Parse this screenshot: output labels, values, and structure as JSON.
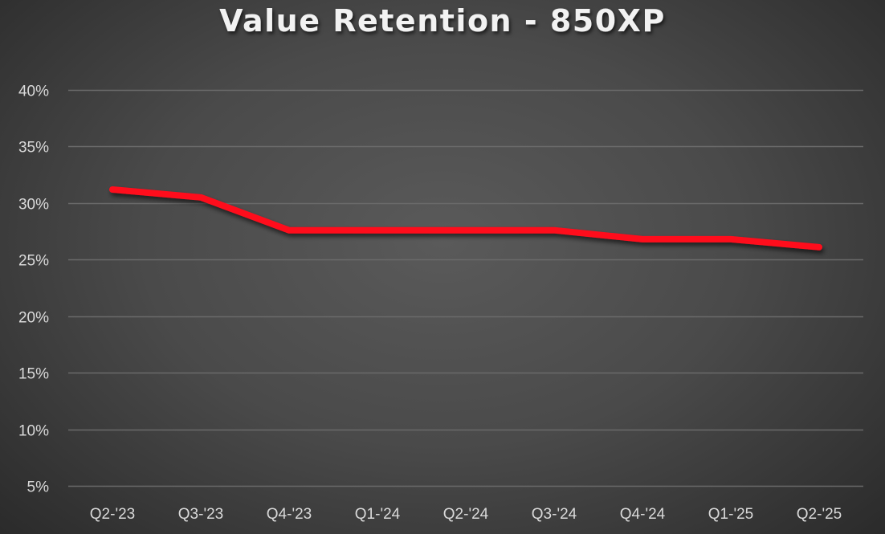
{
  "chart_data": {
    "type": "line",
    "title": "Value Retention - 850XP",
    "xlabel": "",
    "ylabel": "",
    "categories": [
      "Q2-'23",
      "Q3-'23",
      "Q4-'23",
      "Q1-'24",
      "Q2-'24",
      "Q3-'24",
      "Q4-'24",
      "Q1-'25",
      "Q2-'25"
    ],
    "series": [
      {
        "name": "850XP",
        "color": "#ff0c1c",
        "values": [
          31.2,
          30.5,
          27.6,
          27.6,
          27.6,
          27.6,
          26.8,
          26.8,
          26.1
        ]
      }
    ],
    "ylim": [
      5,
      40
    ],
    "yticks": [
      5,
      10,
      15,
      20,
      25,
      30,
      35,
      40
    ],
    "ytick_labels": [
      "5%",
      "10%",
      "15%",
      "20%",
      "25%",
      "30%",
      "35%",
      "40%"
    ],
    "grid": true,
    "legend": null
  },
  "colors": {
    "line": "#ff0c1c",
    "grid": "#6a6a6a",
    "text": "#d9d9d9",
    "title": "#f2f2f2"
  }
}
